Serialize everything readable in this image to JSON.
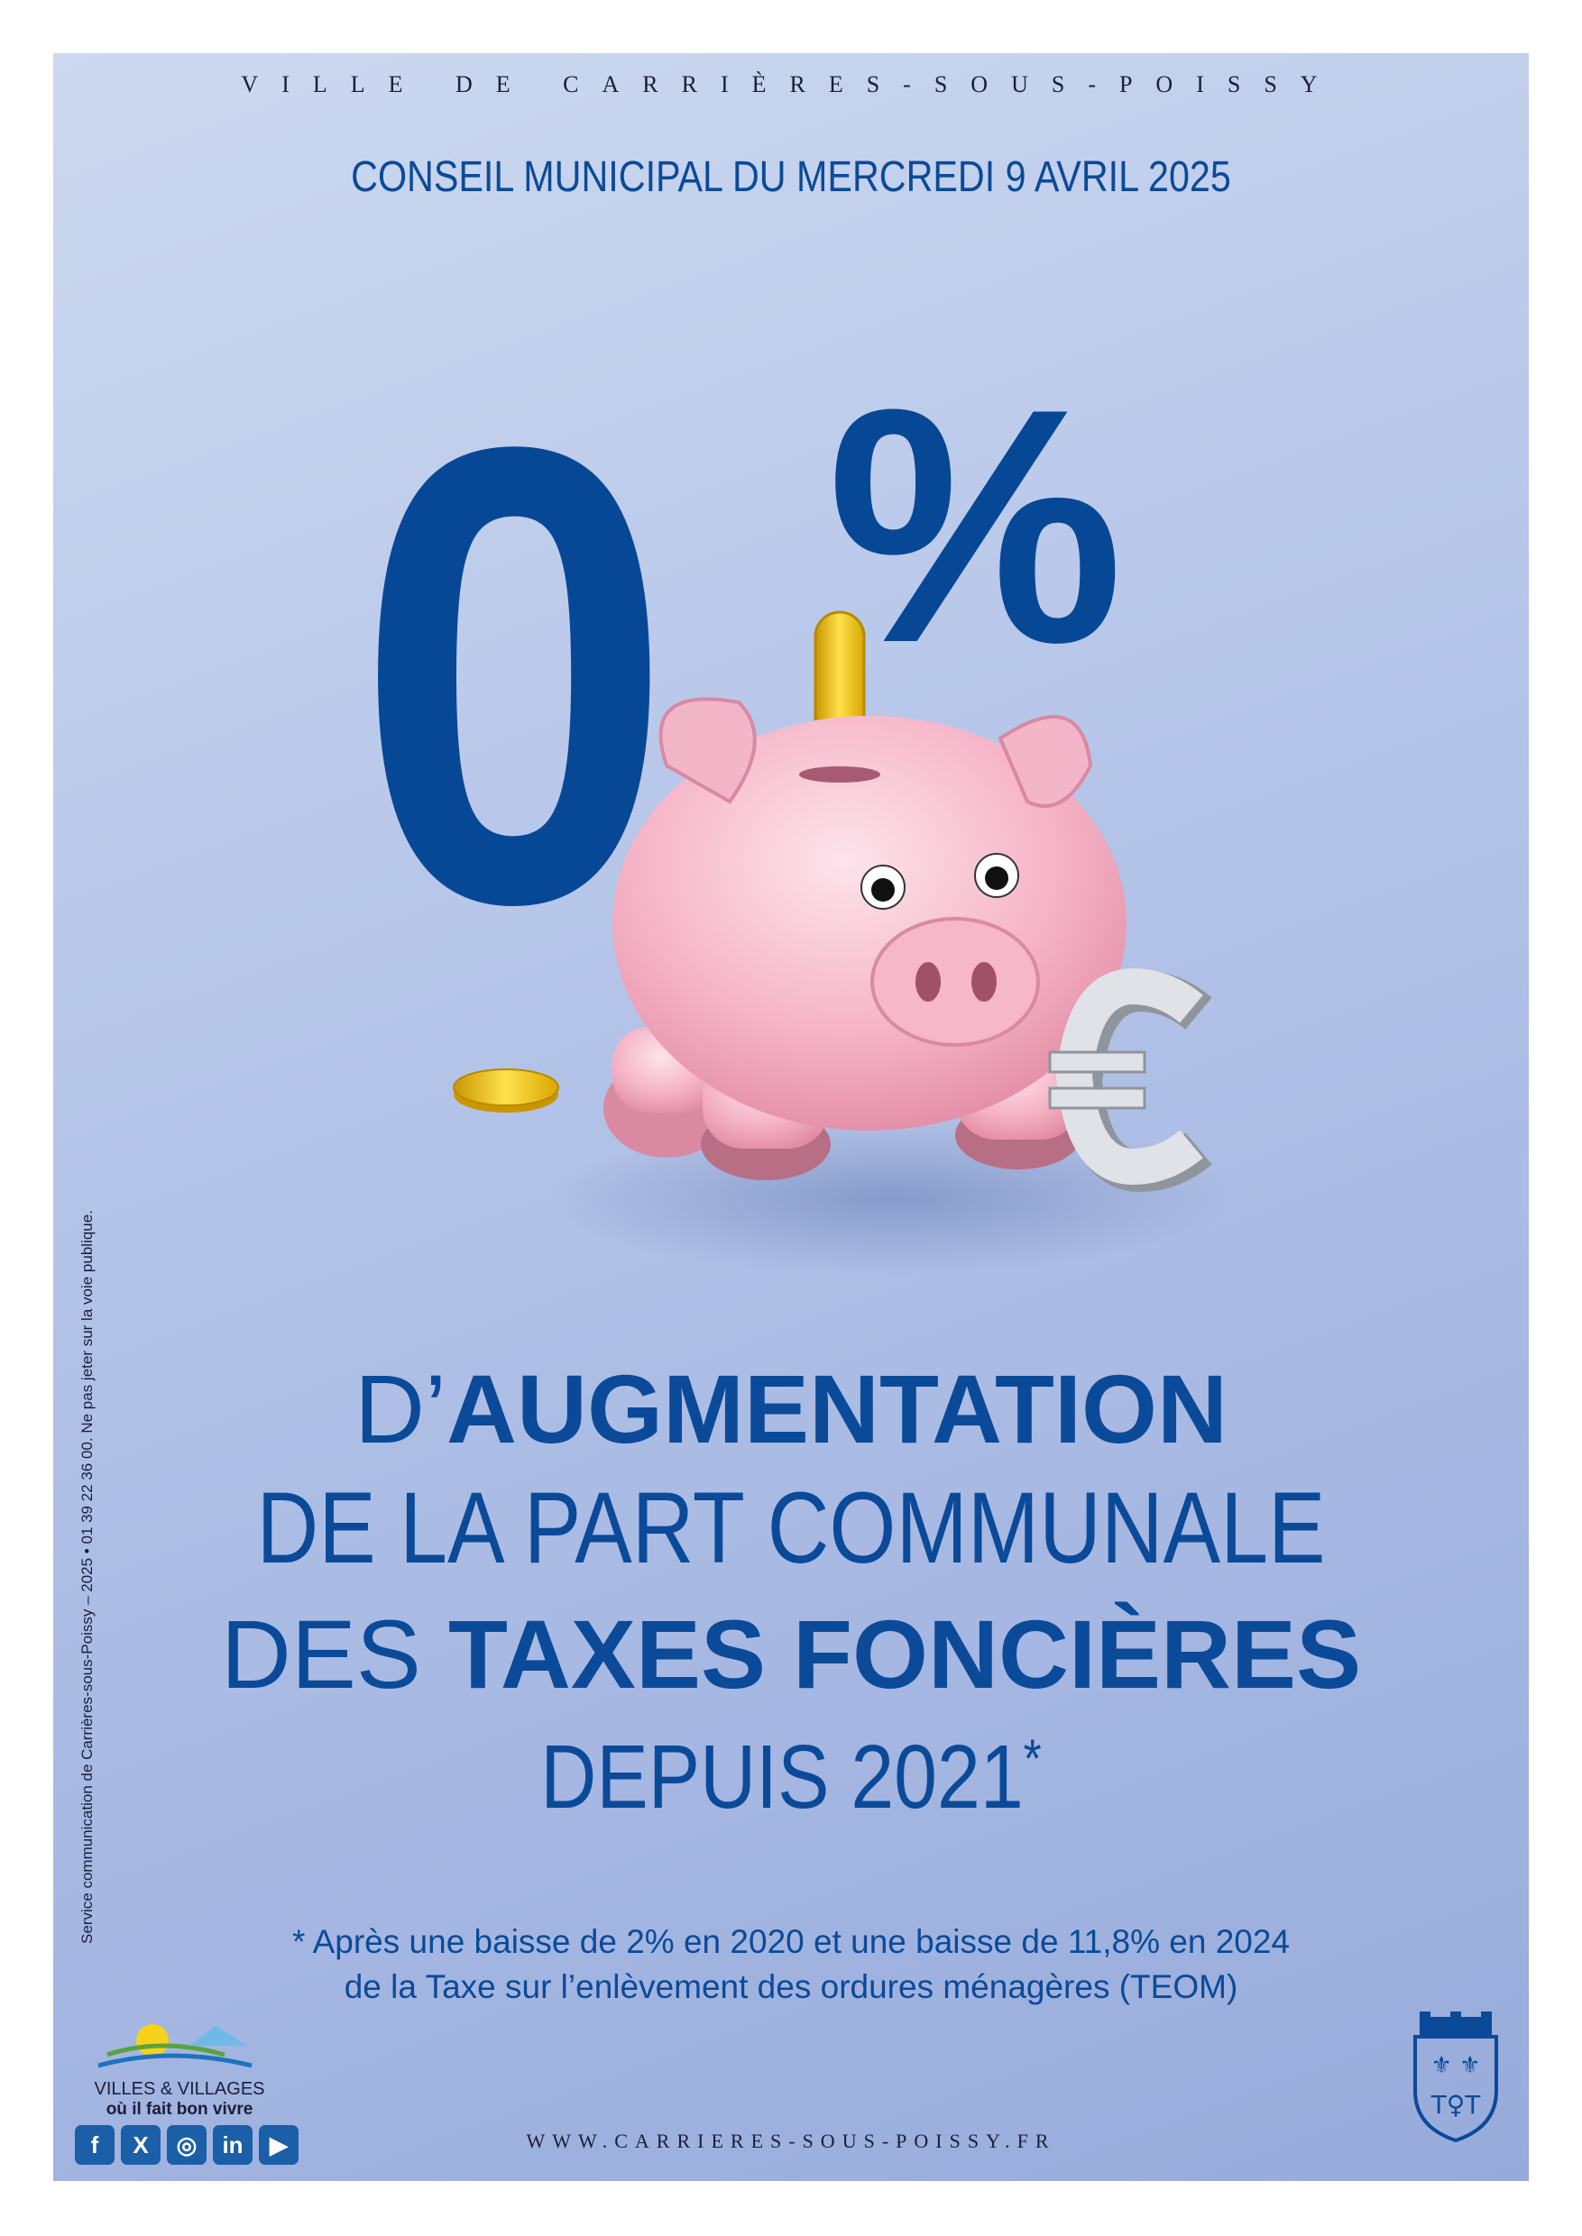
{
  "header": {
    "city": "VILLE DE CARRIÈRES-SOUS-POISSY",
    "council": "CONSEIL MUNICIPAL DU MERCREDI 9 AVRIL 2025"
  },
  "hero": {
    "zero": "0",
    "percent": "%"
  },
  "headline": {
    "line1_prefix": "D’",
    "line1_bold": "AUGMENTATION",
    "line2": "DE LA PART COMMUNALE",
    "line3_prefix": "DES ",
    "line3_bold": "TAXES FONCIÈRES",
    "line4": "DEPUIS 2021",
    "asterisk": "*"
  },
  "footnote": {
    "line1": "* Après une baisse de 2% en 2020 et une baisse de 11,8% en 2024",
    "line2": "de la Taxe sur l’enlèvement des ordures ménagères (TEOM)"
  },
  "side_text": "Service communication de Carrières-sous-Poissy – 2025 • 01 39 22 36 00. Ne pas jeter sur la voie publique.",
  "label": {
    "title": "VILLES & VILLAGES",
    "slogan": "où il fait bon vivre"
  },
  "social": [
    {
      "icon": "facebook-icon",
      "glyph": "f"
    },
    {
      "icon": "x-icon",
      "glyph": "X"
    },
    {
      "icon": "instagram-icon",
      "glyph": "◎"
    },
    {
      "icon": "linkedin-icon",
      "glyph": "in"
    },
    {
      "icon": "youtube-icon",
      "glyph": "▶"
    }
  ],
  "website": "WWW.CARRIERES-SOUS-POISSY.FR",
  "colors": {
    "primary_blue": "#0b4a98",
    "pig_pink": "#f2a9bd",
    "coin_gold": "#f2c200",
    "background": "#b3c3e8"
  }
}
